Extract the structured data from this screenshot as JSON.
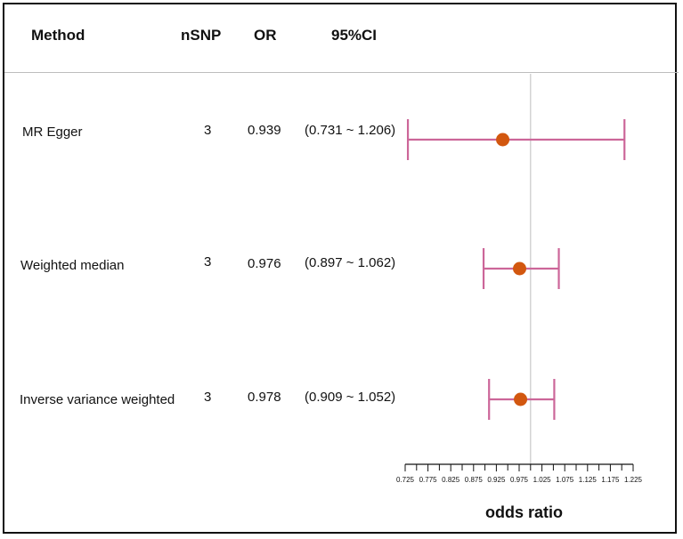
{
  "header": {
    "method": "Method",
    "nsnp": "nSNP",
    "or": "OR",
    "ci": "95%CI"
  },
  "rows": [
    {
      "method": "MR Egger",
      "nsnp": "3",
      "or": "0.939",
      "ci": "(0.731 ~ 1.206)"
    },
    {
      "method": "Weighted median",
      "nsnp": "3",
      "or": "0.976",
      "ci": "(0.897 ~ 1.062)"
    },
    {
      "method": "Inverse variance weighted",
      "nsnp": "3",
      "or": "0.978",
      "ci": "(0.909 ~ 1.052)"
    }
  ],
  "chart_data": {
    "type": "forest",
    "xlabel": "odds ratio",
    "reference_line": 1.0,
    "xlim": [
      0.725,
      1.225
    ],
    "xticks": [
      "0.725",
      "0.775",
      "0.825",
      "0.875",
      "0.925",
      "0.975",
      "1.025",
      "1.075",
      "1.125",
      "1.175",
      "1.225"
    ],
    "series": [
      {
        "label": "MR Egger",
        "estimate": 0.939,
        "lower": 0.731,
        "upper": 1.206
      },
      {
        "label": "Weighted median",
        "estimate": 0.976,
        "lower": 0.897,
        "upper": 1.062
      },
      {
        "label": "Inverse variance weighted",
        "estimate": 0.978,
        "lower": 0.909,
        "upper": 1.052
      }
    ],
    "colors": {
      "ci": "#cc6699",
      "point": "#d2570f",
      "reference": "#c8c8c8",
      "axis": "#111111"
    }
  }
}
